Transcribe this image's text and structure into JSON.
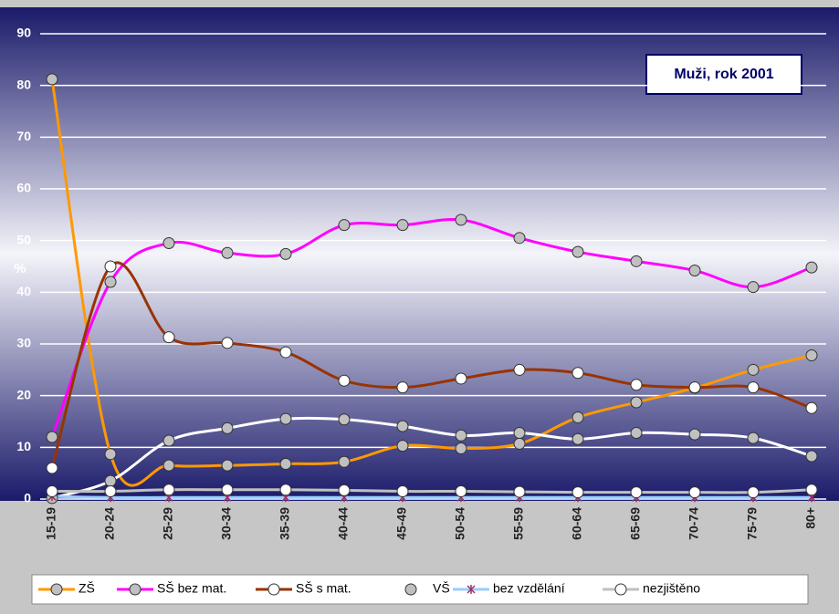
{
  "chart_data": {
    "type": "line",
    "annotation": "Muži, rok 2001",
    "y_label": "%",
    "categories": [
      "15-19",
      "20-24",
      "25-29",
      "30-34",
      "35-39",
      "40-44",
      "45-49",
      "50-54",
      "55-59",
      "60-64",
      "65-69",
      "70-74",
      "75-79",
      "80+"
    ],
    "ylim": [
      0,
      90
    ],
    "yticks": [
      0,
      10,
      20,
      30,
      40,
      50,
      60,
      70,
      80,
      90
    ],
    "grid": true,
    "smooth": true,
    "series": [
      {
        "name": "ZŠ",
        "color": "#ff9900",
        "marker": "circle",
        "marker_fill": "#c0c0c0",
        "values": [
          81.2,
          8.7,
          6.5,
          6.5,
          6.8,
          7.2,
          10.3,
          9.8,
          10.7,
          15.8,
          18.7,
          21.5,
          25,
          27.8
        ]
      },
      {
        "name": "SŠ bez mat.",
        "color": "#ff00ff",
        "marker": "circle",
        "marker_fill": "#c0c0c0",
        "values": [
          12,
          42,
          49.5,
          47.6,
          47.4,
          53,
          53,
          54,
          50.5,
          47.8,
          46,
          44.2,
          41,
          44.8
        ]
      },
      {
        "name": "SŠ s mat.",
        "color": "#993300",
        "marker": "circle",
        "marker_fill": "#ffffff",
        "values": [
          6,
          45,
          31.3,
          30.2,
          28.4,
          22.9,
          21.6,
          23.3,
          25,
          24.4,
          22.1,
          21.6,
          21.6,
          17.6
        ]
      },
      {
        "name": "VŠ",
        "color": "#ffffff",
        "marker": "circle",
        "marker_fill": "#c0c0c0",
        "values": [
          0.2,
          3.5,
          11.3,
          13.7,
          15.5,
          15.4,
          14.1,
          12.3,
          12.8,
          11.6,
          12.8,
          12.5,
          11.8,
          8.3
        ]
      },
      {
        "name": "bez vzdělání",
        "color": "#99ccff",
        "marker": "star",
        "marker_fill": "#993366",
        "values": [
          0.5,
          0.3,
          0.3,
          0.3,
          0.3,
          0.3,
          0.3,
          0.3,
          0.3,
          0.3,
          0.3,
          0.3,
          0.3,
          0.3
        ]
      },
      {
        "name": "nezjištěno",
        "color": "#c0c0c0",
        "marker": "circle",
        "marker_fill": "#ffffff",
        "values": [
          1.5,
          1.5,
          1.8,
          1.8,
          1.8,
          1.7,
          1.5,
          1.5,
          1.4,
          1.3,
          1.3,
          1.3,
          1.3,
          1.8
        ]
      }
    ]
  }
}
